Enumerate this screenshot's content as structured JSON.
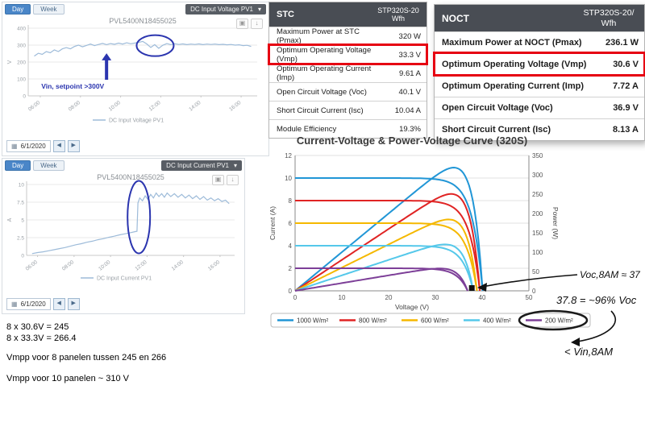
{
  "colors": {
    "annotation_blue": "#2b35af",
    "highlight_red": "#e60012",
    "tab_active": "#4a86c8",
    "table_header": "#494d54",
    "monitor_line": "#9dbbd9"
  },
  "monitor_voltage": {
    "tabs": [
      "Day",
      "Week"
    ],
    "dropdown": "DC Input Voltage PV1",
    "title": "PVL5400N18455025",
    "date": "6/1/2020",
    "annotation": "Vin, setpoint >300V",
    "legend": "DC Input Voltage PV1",
    "y_unit": "V",
    "y_ticks": [
      400,
      300,
      200,
      100,
      0
    ],
    "x_ticks": [
      "06:00",
      "08:00",
      "10:00",
      "12:00",
      "14:00",
      "16:00"
    ],
    "x_tick_hours": [
      6,
      8,
      10,
      12,
      14,
      16
    ],
    "series": [
      [
        5.7,
        235
      ],
      [
        5.9,
        252
      ],
      [
        6.1,
        245
      ],
      [
        6.3,
        262
      ],
      [
        6.5,
        255
      ],
      [
        6.7,
        272
      ],
      [
        6.9,
        262
      ],
      [
        7.1,
        278
      ],
      [
        7.3,
        285
      ],
      [
        7.5,
        278
      ],
      [
        7.7,
        292
      ],
      [
        7.9,
        300
      ],
      [
        8.1,
        290
      ],
      [
        8.3,
        298
      ],
      [
        8.5,
        306
      ],
      [
        8.7,
        297
      ],
      [
        8.9,
        304
      ],
      [
        9.1,
        310
      ],
      [
        9.3,
        303
      ],
      [
        9.5,
        309
      ],
      [
        9.7,
        305
      ],
      [
        9.9,
        312
      ],
      [
        10.1,
        306
      ],
      [
        10.3,
        314
      ],
      [
        10.5,
        308
      ],
      [
        10.7,
        312
      ],
      [
        10.9,
        316
      ],
      [
        11.1,
        322
      ],
      [
        11.3,
        307
      ],
      [
        11.5,
        286
      ],
      [
        11.7,
        303
      ],
      [
        11.9,
        281
      ],
      [
        12.1,
        299
      ],
      [
        12.3,
        309
      ],
      [
        12.5,
        303
      ],
      [
        12.7,
        308
      ],
      [
        12.9,
        304
      ],
      [
        13.1,
        307
      ],
      [
        13.3,
        303
      ],
      [
        13.5,
        306
      ],
      [
        13.7,
        304
      ],
      [
        13.9,
        307
      ],
      [
        14.1,
        303
      ],
      [
        14.3,
        306
      ],
      [
        14.5,
        304
      ],
      [
        14.7,
        306
      ],
      [
        14.9,
        303
      ],
      [
        15.1,
        305
      ],
      [
        15.3,
        302
      ],
      [
        15.5,
        304
      ],
      [
        15.7,
        300
      ],
      [
        15.9,
        302
      ],
      [
        16.1,
        297
      ],
      [
        16.3,
        299
      ],
      [
        16.5,
        292
      ]
    ]
  },
  "monitor_current": {
    "tabs": [
      "Day",
      "Week"
    ],
    "dropdown": "DC Input Current PV1",
    "title": "PVL5400N18455025",
    "date": "6/1/2020",
    "legend": "DC Input Current PV1",
    "y_unit": "A",
    "y_ticks": [
      10,
      7.5,
      5,
      2.5,
      0
    ],
    "x_ticks": [
      "06:00",
      "08:00",
      "10:00",
      "12:00",
      "14:00",
      "16:00"
    ],
    "x_tick_hours": [
      6,
      8,
      10,
      12,
      14,
      16
    ],
    "series": [
      [
        5.7,
        0.25
      ],
      [
        6.0,
        0.4
      ],
      [
        6.3,
        0.5
      ],
      [
        6.6,
        0.65
      ],
      [
        6.9,
        0.8
      ],
      [
        7.2,
        0.95
      ],
      [
        7.5,
        1.1
      ],
      [
        7.8,
        1.3
      ],
      [
        8.1,
        1.5
      ],
      [
        8.4,
        1.65
      ],
      [
        8.7,
        1.85
      ],
      [
        9.0,
        2.0
      ],
      [
        9.3,
        2.2
      ],
      [
        9.6,
        2.35
      ],
      [
        9.9,
        2.55
      ],
      [
        10.2,
        2.7
      ],
      [
        10.5,
        2.9
      ],
      [
        10.8,
        3.05
      ],
      [
        11.1,
        3.2
      ],
      [
        11.35,
        3.35
      ],
      [
        11.45,
        3.4
      ],
      [
        11.5,
        7.4
      ],
      [
        11.6,
        8.1
      ],
      [
        11.75,
        7.7
      ],
      [
        11.9,
        8.4
      ],
      [
        12.05,
        7.9
      ],
      [
        12.2,
        8.6
      ],
      [
        12.35,
        8.1
      ],
      [
        12.5,
        8.8
      ],
      [
        12.65,
        8.3
      ],
      [
        12.8,
        8.7
      ],
      [
        12.95,
        8.2
      ],
      [
        13.1,
        8.8
      ],
      [
        13.3,
        8.3
      ],
      [
        13.5,
        8.7
      ],
      [
        13.7,
        8.2
      ],
      [
        13.9,
        8.6
      ],
      [
        14.1,
        8.1
      ],
      [
        14.3,
        8.5
      ],
      [
        14.5,
        8.0
      ],
      [
        14.7,
        8.4
      ],
      [
        14.9,
        7.9
      ],
      [
        15.1,
        8.3
      ],
      [
        15.3,
        7.8
      ],
      [
        15.5,
        8.1
      ],
      [
        15.7,
        7.7
      ],
      [
        15.9,
        8.0
      ],
      [
        16.1,
        7.6
      ],
      [
        16.3,
        7.8
      ],
      [
        16.5,
        7.3
      ]
    ]
  },
  "table_stc": {
    "title": "STC",
    "col_line1": "STP320S-20",
    "col_line2": "Wfh",
    "rows": [
      {
        "label": "Maximum Power at STC (Pmax)",
        "value": "320 W",
        "highlight": false
      },
      {
        "label": "Optimum Operating Voltage (Vmp)",
        "value": "33.3 V",
        "highlight": true
      },
      {
        "label": "Optimum Operating Current (Imp)",
        "value": "9.61 A",
        "highlight": false
      },
      {
        "label": "Open Circuit Voltage (Voc)",
        "value": "40.1 V",
        "highlight": false
      },
      {
        "label": "Short Circuit Current (Isc)",
        "value": "10.04 A",
        "highlight": false
      },
      {
        "label": "Module Efficiency",
        "value": "19.3%",
        "highlight": false
      }
    ]
  },
  "table_noct": {
    "title": "NOCT",
    "col_line1": "STP320S-20/",
    "col_line2": "Wfh",
    "rows": [
      {
        "label": "Maximum Power at NOCT (Pmax)",
        "value": "236.1 W",
        "highlight": false
      },
      {
        "label": "Optimum Operating Voltage (Vmp)",
        "value": "30.6 V",
        "highlight": true
      },
      {
        "label": "Optimum Operating Current (Imp)",
        "value": "7.72 A",
        "highlight": false
      },
      {
        "label": "Open Circuit Voltage (Voc)",
        "value": "36.9 V",
        "highlight": false
      },
      {
        "label": "Short Circuit Current (Isc)",
        "value": "8.13 A",
        "highlight": false
      }
    ]
  },
  "iv_chart": {
    "type": "line",
    "title": "Current-Voltage & Power-Voltage Curve (320S)",
    "xlabel": "Voltage (V)",
    "ylabel_left": "Current (A)",
    "ylabel_right": "Power (W)",
    "x_max": 50,
    "y_left_max": 12,
    "y_right_max": 350,
    "x_ticks": [
      0,
      10,
      20,
      30,
      40,
      50
    ],
    "y_left_ticks": [
      0,
      2,
      4,
      6,
      8,
      10,
      12
    ],
    "y_right_ticks": [
      0,
      50,
      100,
      150,
      200,
      250,
      300,
      350
    ],
    "marker_x": 37.8,
    "circled_legend_label": "200 W/m²",
    "series": [
      {
        "label": "1000 W/m²",
        "color": "#2196d6",
        "isc": 10.0,
        "voc": 40.1
      },
      {
        "label": "800 W/m²",
        "color": "#e02424",
        "isc": 8.0,
        "voc": 39.5
      },
      {
        "label": "600 W/m²",
        "color": "#f5b800",
        "isc": 6.0,
        "voc": 38.9
      },
      {
        "label": "400 W/m²",
        "color": "#55c8ea",
        "isc": 4.0,
        "voc": 38.1
      },
      {
        "label": "200 W/m²",
        "color": "#7d3f98",
        "isc": 2.0,
        "voc": 36.9
      }
    ]
  },
  "notes": {
    "lines": [
      "8 x 30.6V = 245",
      "8 x 33.3V = 266.4",
      "Vmpp voor 8 panelen tussen 245 en 266",
      "Vmpp voor 10 panelen ~ 310 V"
    ]
  },
  "handwritten": {
    "voc_note": "Voc,8AM ≈ 37",
    "calc_note": "37.8 = ~96% Voc",
    "vin_note": "< Vin,8AM"
  }
}
